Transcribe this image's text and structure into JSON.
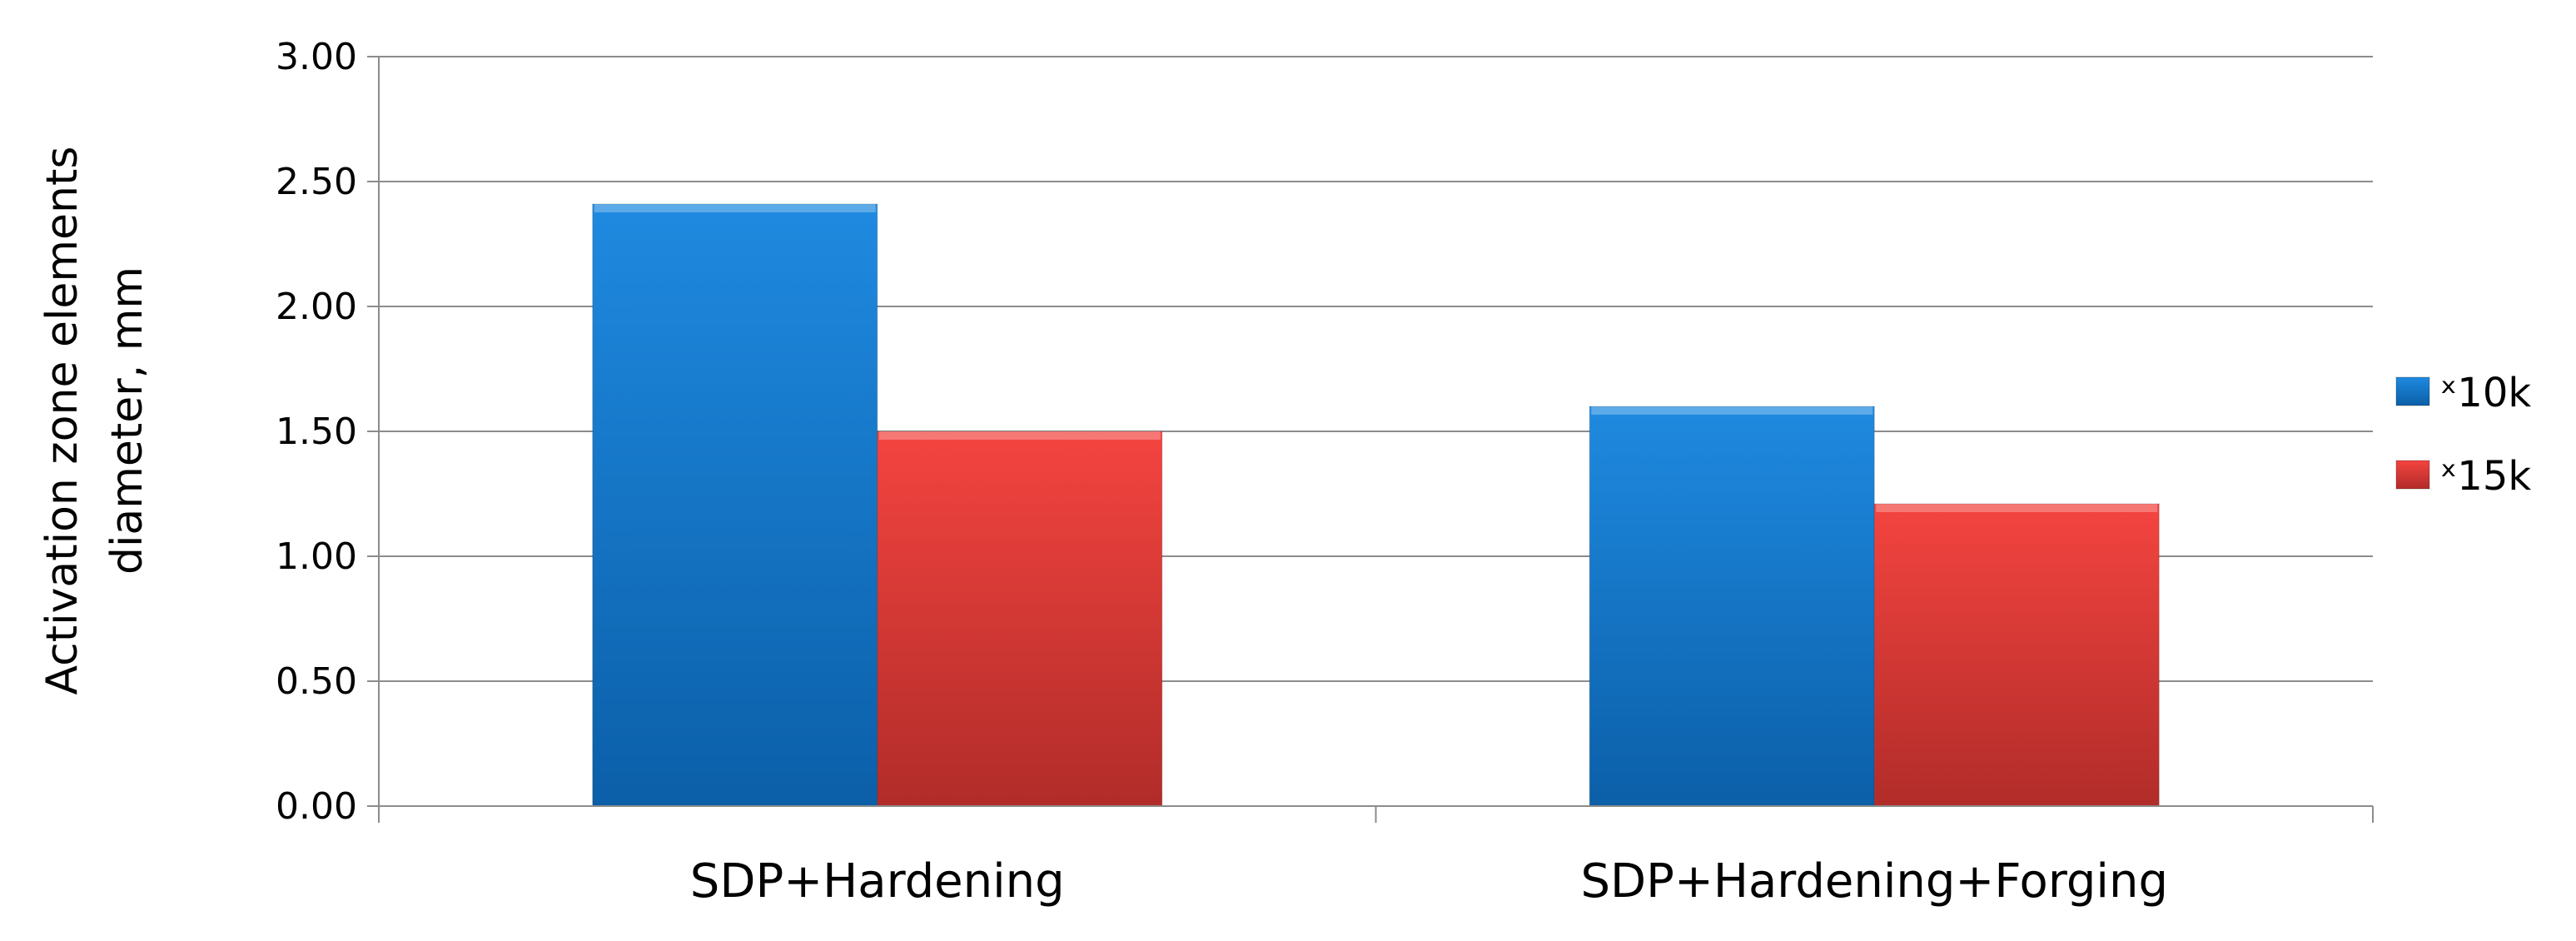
{
  "chart_data": {
    "type": "bar",
    "categories": [
      "SDP+Hardening",
      "SDP+Hardening+Forging"
    ],
    "series": [
      {
        "name": "ˣ10k",
        "values": [
          2.41,
          1.6
        ],
        "color": "#1a7fd4"
      },
      {
        "name": "ˣ15k",
        "values": [
          1.5,
          1.21
        ],
        "color": "#e8403c"
      }
    ],
    "title": "",
    "xlabel": "",
    "ylabel": "Activation zone elements diameter, mm",
    "ylabel_lines": [
      "Activation zone elements",
      "diameter, mm"
    ],
    "ylim": [
      0,
      3
    ],
    "ytick_labels": [
      "0.00",
      "0.50",
      "1.00",
      "1.50",
      "2.00",
      "2.50",
      "3.00"
    ],
    "grid": true,
    "legend_position": "right"
  }
}
